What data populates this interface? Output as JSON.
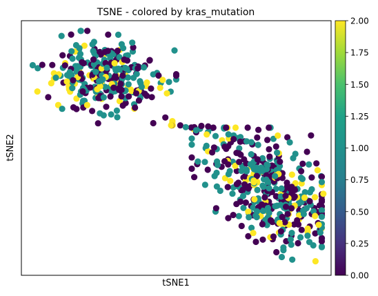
{
  "chart_data": {
    "type": "scatter",
    "title": "TSNE - colored by kras_mutation",
    "xlabel": "tSNE1",
    "ylabel": "tSNE2",
    "xlim": [
      0,
      100
    ],
    "ylim": [
      0,
      100
    ],
    "xticks": [],
    "yticks": [],
    "grid": false,
    "colormap": "viridis",
    "colorbar": {
      "min": 0,
      "max": 2,
      "ticks": [
        "0.00",
        "0.25",
        "0.50",
        "0.75",
        "1.00",
        "1.25",
        "1.50",
        "1.75",
        "2.00"
      ]
    },
    "points": []
  },
  "colors": {
    "viridis_0": "#440154",
    "viridis_1": "#21918c",
    "viridis_2": "#fde725"
  }
}
